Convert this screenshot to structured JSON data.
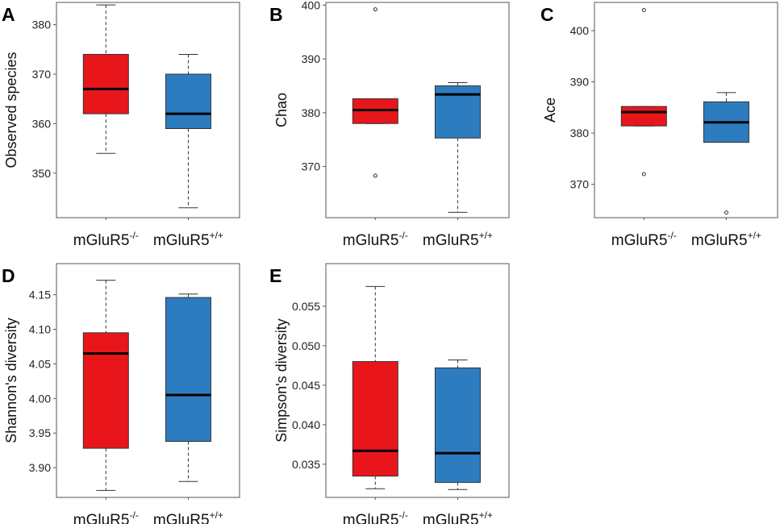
{
  "colors": {
    "knockout": "#E8161B",
    "wildtype": "#2E7CC0"
  },
  "chart_data": [
    {
      "panel": "A",
      "type": "box",
      "ylabel": "Observed species",
      "ylim": [
        341,
        384.5
      ],
      "ticks": [
        350,
        360,
        370,
        380
      ],
      "groups": [
        {
          "name": "mGluR5",
          "sup": "-/-",
          "color_key": "knockout",
          "min": 354,
          "q1": 362,
          "median": 367,
          "q3": 374,
          "max": 384,
          "outliers": []
        },
        {
          "name": "mGluR5",
          "sup": "+/+",
          "color_key": "wildtype",
          "min": 343,
          "q1": 359,
          "median": 362,
          "q3": 370,
          "max": 374,
          "outliers": []
        }
      ]
    },
    {
      "panel": "B",
      "type": "box",
      "ylabel": "Chao",
      "ylim": [
        360.5,
        400.5
      ],
      "ticks": [
        370,
        380,
        390,
        400
      ],
      "groups": [
        {
          "name": "mGluR5",
          "sup": "-/-",
          "color_key": "knockout",
          "min": 378,
          "q1": 378,
          "median": 380.5,
          "q3": 382.6,
          "max": 382.6,
          "outliers": [
            368.3,
            399.2
          ]
        },
        {
          "name": "mGluR5",
          "sup": "+/+",
          "color_key": "wildtype",
          "min": 361.5,
          "q1": 375.3,
          "median": 383.4,
          "q3": 385,
          "max": 385.6,
          "outliers": []
        }
      ]
    },
    {
      "panel": "C",
      "type": "box",
      "ylabel": "Ace",
      "ylim": [
        363.5,
        405.5
      ],
      "ticks": [
        370,
        380,
        390,
        400
      ],
      "groups": [
        {
          "name": "mGluR5",
          "sup": "-/-",
          "color_key": "knockout",
          "min": 381.4,
          "q1": 381.4,
          "median": 384.1,
          "q3": 385.2,
          "max": 385.2,
          "outliers": [
            372,
            404
          ]
        },
        {
          "name": "mGluR5",
          "sup": "+/+",
          "color_key": "wildtype",
          "min": 378.2,
          "q1": 378.2,
          "median": 382.1,
          "q3": 386.1,
          "max": 387.9,
          "outliers": [
            364.5
          ]
        }
      ]
    },
    {
      "panel": "D",
      "type": "box",
      "ylabel": "Shannon's diversity",
      "ylim": [
        3.857,
        4.195
      ],
      "ticks": [
        "3.90",
        "3.95",
        "4.00",
        "4.05",
        "4.10",
        "4.15"
      ],
      "groups": [
        {
          "name": "mGluR5",
          "sup": "-/-",
          "color_key": "knockout",
          "min": 3.867,
          "q1": 3.928,
          "median": 4.065,
          "q3": 4.095,
          "max": 4.171,
          "outliers": []
        },
        {
          "name": "mGluR5",
          "sup": "+/+",
          "color_key": "wildtype",
          "min": 3.88,
          "q1": 3.938,
          "median": 4.005,
          "q3": 4.146,
          "max": 4.151,
          "outliers": []
        }
      ]
    },
    {
      "panel": "E",
      "type": "box",
      "ylabel": "Simpson's diversity",
      "ylim": [
        0.0308,
        0.0604
      ],
      "ticks": [
        "0.035",
        "0.040",
        "0.045",
        "0.050",
        "0.055"
      ],
      "groups": [
        {
          "name": "mGluR5",
          "sup": "-/-",
          "color_key": "knockout",
          "min": 0.0319,
          "q1": 0.0335,
          "median": 0.0367,
          "q3": 0.048,
          "max": 0.0575,
          "outliers": []
        },
        {
          "name": "mGluR5",
          "sup": "+/+",
          "color_key": "wildtype",
          "min": 0.0318,
          "q1": 0.0327,
          "median": 0.0364,
          "q3": 0.0472,
          "max": 0.0482,
          "outliers": []
        }
      ]
    }
  ]
}
